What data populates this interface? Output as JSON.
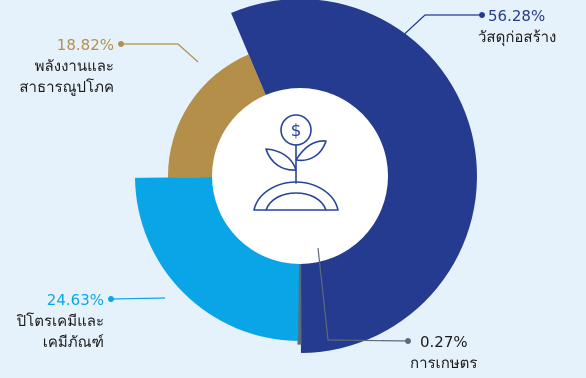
{
  "chart_data": {
    "type": "pie",
    "variant": "rose-donut",
    "legend_placement": "callouts",
    "slices": [
      {
        "value": 56.28,
        "pct_label": "56.28%",
        "label_lines": [
          "วัสดุก่อสร้าง"
        ],
        "color": "#253b8f"
      },
      {
        "value": 0.27,
        "pct_label": "0.27%",
        "label_lines": [
          "การเกษตร"
        ],
        "color": "#5c6b7a"
      },
      {
        "value": 24.63,
        "pct_label": "24.63%",
        "label_lines": [
          "ปิโตรเคมีและ",
          "เคมีภัณฑ์"
        ],
        "color": "#0aa5e6"
      },
      {
        "value": 18.82,
        "pct_label": "18.82%",
        "label_lines": [
          "พลังงานและ",
          "สาธารณูปโภค"
        ],
        "color": "#b38f4a"
      }
    ]
  },
  "center_icon": "money-plant-icon"
}
